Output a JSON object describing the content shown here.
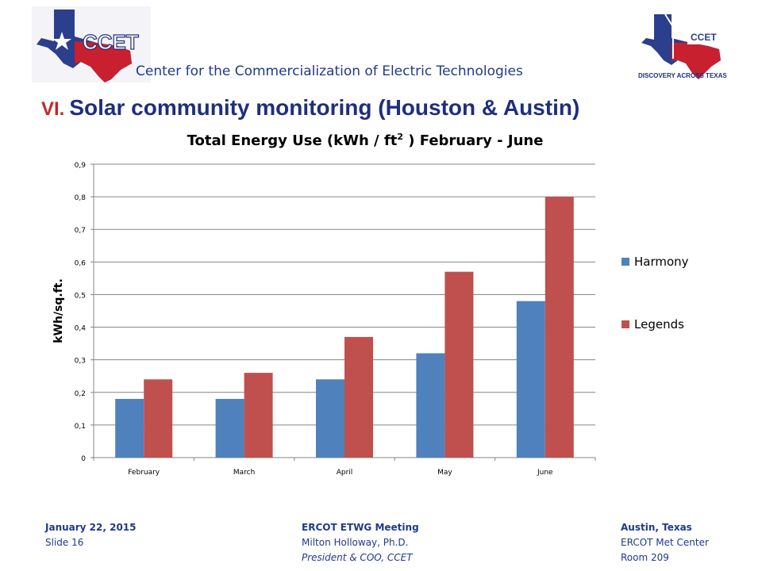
{
  "header": {
    "org_name": "Center for the Commercialization of Electric Technologies",
    "logo_left_text": "CCET",
    "logo_right_text": "CCET",
    "logo_right_tagline": "DISCOVERY ACROSS TEXAS"
  },
  "slide": {
    "roman": "VI.",
    "title": "Solar community monitoring (Houston & Austin)"
  },
  "chart_title": {
    "before": "Total Energy Use (kWh / ft",
    "sup": "2",
    "after": " ) February - June"
  },
  "chart_data": {
    "type": "bar",
    "title": "Total Energy Use (kWh / ft2 ) February - June",
    "xlabel": "",
    "ylabel": "kWh/sq.ft.",
    "categories": [
      "February",
      "March",
      "April",
      "May",
      "June"
    ],
    "series": [
      {
        "name": "Harmony",
        "values": [
          0.18,
          0.18,
          0.24,
          0.32,
          0.48
        ],
        "color": "#4f81bd"
      },
      {
        "name": "Legends",
        "values": [
          0.24,
          0.26,
          0.37,
          0.57,
          0.8
        ],
        "color": "#c0504d"
      }
    ],
    "ylim": [
      0,
      0.9
    ],
    "yticks": [
      "0",
      "0,1",
      "0,2",
      "0,3",
      "0,4",
      "0,5",
      "0,6",
      "0,7",
      "0,8",
      "0,9"
    ],
    "grid": true,
    "legend": "right"
  },
  "footer": {
    "left": {
      "line1": "January 22, 2015",
      "line2": "Slide 16"
    },
    "center": {
      "line1": "ERCOT ETWG Meeting",
      "line2": "Milton Holloway, Ph.D.",
      "line3": "President & COO, CCET"
    },
    "right": {
      "line1": "Austin, Texas",
      "line2": "ERCOT Met Center",
      "line3": "Room 209"
    }
  },
  "colors": {
    "title_blue": "#1f2f7a",
    "roman_red": "#c0272d",
    "texas_blue": "#2b3f8c",
    "texas_red": "#c8202f"
  }
}
